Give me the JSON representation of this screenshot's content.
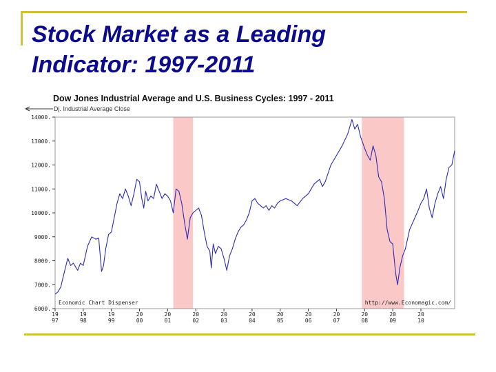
{
  "slide": {
    "title_line1": "Stock Market as a Leading",
    "title_line2": "Indicator: 1997-2011"
  },
  "colors": {
    "title": "#0b0b8c",
    "rule": "#cfc23a",
    "recession": "#fbc8c8",
    "series": "#2a2ab8"
  },
  "chart_data": {
    "type": "line",
    "title": "Dow Jones Industrial Average and U.S. Business Cycles: 1997 - 2011",
    "legend": {
      "label": "Dj. Industrial Average Close",
      "position": "top-left"
    },
    "source_left": "Economic Chart Dispenser",
    "source_right": "http://www.Economagic.com/",
    "xlim": [
      1997.0,
      2011.2
    ],
    "ylim": [
      6000,
      14000
    ],
    "y_ticks": [
      6000,
      7000,
      8000,
      9000,
      10000,
      11000,
      12000,
      13000,
      14000
    ],
    "y_tick_labels": [
      "6000.",
      "7000.",
      "8000.",
      "9000.",
      "10000.",
      "11000.",
      "12000.",
      "13000.",
      "14000."
    ],
    "x_ticks": [
      1997,
      1998,
      1999,
      2000,
      2001,
      2002,
      2003,
      2004,
      2005,
      2006,
      2007,
      2008,
      2009,
      2010
    ],
    "x_tick_top": [
      "19",
      "19",
      "19",
      "20",
      "20",
      "20",
      "20",
      "20",
      "20",
      "20",
      "20",
      "20",
      "20",
      "20"
    ],
    "x_tick_bottom": [
      "97",
      "98",
      "99",
      "00",
      "01",
      "02",
      "03",
      "04",
      "05",
      "06",
      "07",
      "08",
      "09",
      "10"
    ],
    "recessions": [
      {
        "start": 2001.2,
        "end": 2001.9
      },
      {
        "start": 2007.9,
        "end": 2009.4
      }
    ],
    "series": [
      {
        "name": "Dj. Industrial Average Close",
        "x": [
          1997.0,
          1997.1,
          1997.2,
          1997.3,
          1997.45,
          1997.55,
          1997.65,
          1997.8,
          1997.9,
          1998.0,
          1998.15,
          1998.3,
          1998.45,
          1998.55,
          1998.65,
          1998.72,
          1998.8,
          1998.9,
          1999.0,
          1999.1,
          1999.2,
          1999.3,
          1999.4,
          1999.5,
          1999.6,
          1999.7,
          1999.8,
          1999.9,
          2000.0,
          2000.08,
          2000.15,
          2000.22,
          2000.3,
          2000.4,
          2000.5,
          2000.6,
          2000.7,
          2000.8,
          2000.9,
          2001.0,
          2001.1,
          2001.2,
          2001.3,
          2001.4,
          2001.5,
          2001.6,
          2001.7,
          2001.8,
          2001.9,
          2002.0,
          2002.1,
          2002.2,
          2002.3,
          2002.4,
          2002.5,
          2002.55,
          2002.62,
          2002.7,
          2002.8,
          2002.9,
          2003.0,
          2003.1,
          2003.2,
          2003.3,
          2003.4,
          2003.5,
          2003.6,
          2003.7,
          2003.8,
          2003.9,
          2004.0,
          2004.1,
          2004.2,
          2004.3,
          2004.4,
          2004.5,
          2004.6,
          2004.7,
          2004.8,
          2004.9,
          2005.0,
          2005.2,
          2005.4,
          2005.6,
          2005.8,
          2006.0,
          2006.2,
          2006.4,
          2006.5,
          2006.6,
          2006.8,
          2007.0,
          2007.2,
          2007.4,
          2007.55,
          2007.65,
          2007.75,
          2007.85,
          2008.0,
          2008.1,
          2008.2,
          2008.3,
          2008.4,
          2008.5,
          2008.6,
          2008.7,
          2008.8,
          2008.9,
          2009.0,
          2009.1,
          2009.17,
          2009.25,
          2009.35,
          2009.45,
          2009.6,
          2009.75,
          2009.9,
          2010.0,
          2010.1,
          2010.2,
          2010.3,
          2010.4,
          2010.5,
          2010.6,
          2010.7,
          2010.8,
          2010.9,
          2011.0,
          2011.1,
          2011.2
        ],
        "values": [
          6600,
          6700,
          6900,
          7400,
          8100,
          7800,
          7900,
          7600,
          7900,
          7800,
          8600,
          9000,
          8900,
          8950,
          7550,
          7800,
          8500,
          9100,
          9200,
          9800,
          10400,
          10800,
          10600,
          11000,
          10700,
          10300,
          10800,
          11400,
          11300,
          10600,
          10200,
          10900,
          10500,
          10700,
          10600,
          11200,
          10900,
          10600,
          10800,
          10700,
          10500,
          10000,
          11000,
          10900,
          10400,
          9600,
          8900,
          9800,
          10000,
          10100,
          10200,
          9900,
          9200,
          8600,
          8400,
          7700,
          8700,
          8300,
          8600,
          8500,
          8100,
          7600,
          8200,
          8500,
          8900,
          9200,
          9400,
          9500,
          9700,
          10000,
          10500,
          10600,
          10400,
          10300,
          10200,
          10300,
          10100,
          10300,
          10200,
          10400,
          10500,
          10600,
          10500,
          10300,
          10600,
          10800,
          11200,
          11400,
          11100,
          11300,
          12000,
          12400,
          12800,
          13300,
          13900,
          13500,
          13700,
          13200,
          12700,
          12400,
          12200,
          12800,
          12400,
          11500,
          11300,
          10600,
          9300,
          8800,
          8700,
          7500,
          7000,
          7700,
          8200,
          8500,
          9300,
          9700,
          10100,
          10400,
          10600,
          11000,
          10200,
          9800,
          10400,
          10800,
          11100,
          10600,
          11400,
          11900,
          12000,
          12600
        ]
      }
    ]
  }
}
